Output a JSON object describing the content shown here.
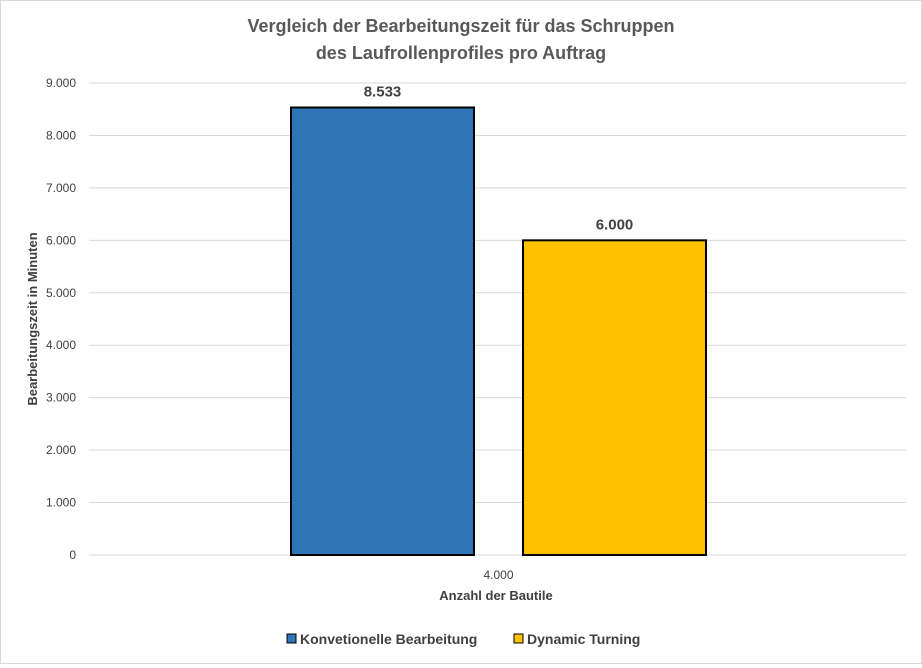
{
  "chart_data": {
    "type": "bar",
    "title": [
      "Vergleich der Bearbeitungszeit für das Schruppen",
      "des Laufrollenprofiles pro Auftrag"
    ],
    "categories": [
      "4.000"
    ],
    "series": [
      {
        "name": "Konvetionelle Bearbeitung",
        "values": [
          8533
        ],
        "value_labels": [
          "8.533"
        ],
        "color": "#2e75b6"
      },
      {
        "name": "Dynamic Turning",
        "values": [
          6000
        ],
        "value_labels": [
          "6.000"
        ],
        "color": "#ffc000"
      }
    ],
    "xlabel": "Anzahl der Bautile",
    "ylabel": "Bearbeitungszeit in Minuten",
    "ylim": [
      0,
      9000
    ],
    "yticks": [
      0,
      1000,
      2000,
      3000,
      4000,
      5000,
      6000,
      7000,
      8000,
      9000
    ],
    "ytick_labels": [
      "0",
      "1.000",
      "2.000",
      "3.000",
      "4.000",
      "5.000",
      "6.000",
      "7.000",
      "8.000",
      "9.000"
    ],
    "grid": true,
    "legend_position": "bottom"
  }
}
